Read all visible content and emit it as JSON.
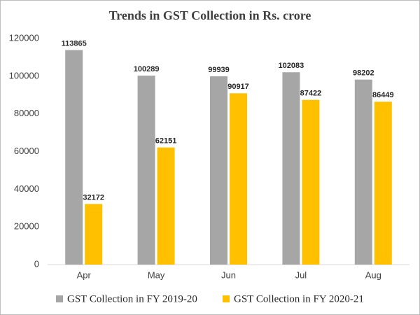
{
  "chart_data": {
    "type": "bar",
    "title": "Trends  in GST Collection in Rs. crore",
    "categories": [
      "Apr",
      "May",
      "Jun",
      "Jul",
      "Aug"
    ],
    "series": [
      {
        "name": "GST Collection in FY 2019-20",
        "color": "#a6a6a6",
        "values": [
          113865,
          100289,
          99939,
          102083,
          98202
        ]
      },
      {
        "name": "GST Collection in FY 2020-21",
        "color": "#ffc000",
        "values": [
          32172,
          62151,
          90917,
          87422,
          86449
        ]
      }
    ],
    "ylim": [
      0,
      120000
    ],
    "yticks": [
      0,
      20000,
      40000,
      60000,
      80000,
      100000,
      120000
    ],
    "legend": "bottom"
  }
}
